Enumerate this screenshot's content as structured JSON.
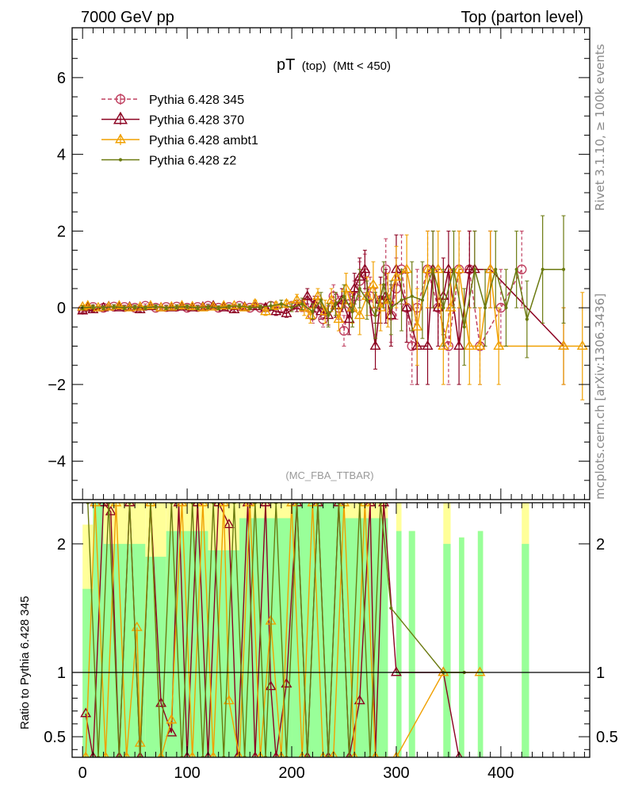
{
  "header": {
    "left": "7000 GeV pp",
    "right": "Top (parton level)"
  },
  "side": {
    "rivet": "Rivet 3.1.10, ≥ 100k events",
    "mcplots": "mcplots.cern.ch [arXiv:1306.3436]"
  },
  "chart_data": [
    {
      "type": "line",
      "title": "pT",
      "title_sub": "(top)",
      "title_cut": "(Mtt < 450)",
      "analysis": "(MC_FBA_TTBAR)",
      "xlim": [
        -10,
        485
      ],
      "ylim": [
        -5,
        7.3
      ],
      "yticks": [
        -4,
        -2,
        0,
        2,
        4,
        6
      ],
      "ytick_labels": [
        "−4",
        "−2",
        "0",
        "2",
        "4",
        "6"
      ],
      "legend_position": "top-left",
      "series": [
        {
          "name": "Pythia 6.428 345",
          "color": "#c04060",
          "style": "dashed",
          "marker": "circle",
          "x": [
            0,
            10,
            20,
            30,
            40,
            50,
            60,
            70,
            80,
            90,
            100,
            110,
            120,
            130,
            140,
            150,
            160,
            170,
            180,
            190,
            200,
            210,
            215,
            220,
            225,
            230,
            240,
            245,
            250,
            255,
            260,
            265,
            270,
            275,
            280,
            285,
            290,
            295,
            300,
            305,
            310,
            315,
            320,
            330,
            340,
            350,
            360,
            370,
            380,
            400,
            420
          ],
          "y": [
            -0.05,
            0.02,
            0.0,
            0.03,
            0.02,
            0.0,
            0.05,
            0.0,
            0.02,
            0.03,
            0.0,
            0.02,
            0.05,
            0.0,
            0.02,
            0.05,
            0.0,
            0.0,
            0.05,
            0.0,
            0.05,
            0.05,
            0.1,
            -0.2,
            0.1,
            -0.3,
            0.3,
            0.0,
            -0.6,
            0.1,
            0.3,
            0.7,
            0.9,
            0.3,
            -0.1,
            0.2,
            1.0,
            -0.2,
            0.5,
            1.0,
            0.0,
            -1.0,
            0.0,
            1.0,
            0.0,
            -1.0,
            1.0,
            1.0,
            -1.0,
            0.0,
            1.0
          ],
          "err": [
            0.05,
            0.05,
            0.05,
            0.05,
            0.05,
            0.05,
            0.05,
            0.05,
            0.05,
            0.05,
            0.05,
            0.05,
            0.05,
            0.05,
            0.05,
            0.05,
            0.05,
            0.05,
            0.1,
            0.1,
            0.1,
            0.15,
            0.2,
            0.2,
            0.2,
            0.2,
            0.3,
            0.3,
            0.4,
            0.3,
            0.4,
            0.5,
            0.5,
            0.5,
            0.6,
            0.6,
            0.8,
            0.7,
            0.8,
            0.9,
            0.9,
            1.0,
            1.0,
            1.0,
            1.0,
            1.0,
            1.0,
            1.0,
            1.0,
            1.0,
            1.0
          ]
        },
        {
          "name": "Pythia 6.428 370",
          "color": "#8b0020",
          "style": "solid",
          "marker": "triangle",
          "x": [
            0,
            5,
            10,
            20,
            25,
            35,
            45,
            55,
            65,
            75,
            85,
            95,
            105,
            115,
            125,
            135,
            145,
            155,
            165,
            175,
            185,
            195,
            205,
            215,
            222,
            228,
            235,
            242,
            248,
            255,
            260,
            265,
            270,
            280,
            285,
            290,
            295,
            300,
            310,
            320,
            330,
            335,
            340,
            345,
            350,
            360,
            370,
            375,
            390,
            460
          ],
          "y": [
            -0.08,
            0.0,
            -0.05,
            0.0,
            0.03,
            0.0,
            0.02,
            -0.05,
            0.03,
            0.0,
            0.0,
            0.02,
            0.0,
            0.02,
            0.05,
            0.0,
            -0.05,
            0.02,
            0.03,
            0.0,
            -0.1,
            -0.15,
            0.05,
            0.3,
            0.1,
            -0.1,
            -0.2,
            0.05,
            0.2,
            -0.3,
            0.5,
            0.8,
            1.0,
            -1.0,
            0.2,
            0.3,
            -0.2,
            1.0,
            0.0,
            -1.0,
            -1.0,
            1.0,
            0.0,
            0.3,
            1.0,
            -1.0,
            1.0,
            1.0,
            1.0,
            -1.0
          ],
          "err": [
            0.05,
            0.05,
            0.05,
            0.05,
            0.05,
            0.05,
            0.05,
            0.05,
            0.05,
            0.05,
            0.05,
            0.05,
            0.05,
            0.05,
            0.05,
            0.05,
            0.05,
            0.05,
            0.05,
            0.1,
            0.1,
            0.1,
            0.15,
            0.2,
            0.2,
            0.2,
            0.25,
            0.3,
            0.3,
            0.4,
            0.4,
            0.5,
            0.5,
            0.6,
            0.6,
            0.7,
            0.8,
            0.9,
            0.9,
            1.0,
            1.0,
            1.0,
            1.0,
            1.0,
            1.0,
            1.0,
            1.0,
            1.0,
            1.0,
            1.0
          ]
        },
        {
          "name": "Pythia 6.428 ambt1",
          "color": "#f0a000",
          "style": "solid",
          "marker": "triangle",
          "x": [
            0,
            5,
            15,
            25,
            35,
            45,
            55,
            65,
            75,
            85,
            95,
            105,
            115,
            125,
            135,
            145,
            155,
            165,
            175,
            185,
            195,
            205,
            212,
            218,
            225,
            232,
            238,
            245,
            252,
            258,
            265,
            272,
            278,
            285,
            292,
            300,
            310,
            320,
            330,
            340,
            345,
            352,
            360,
            370,
            380,
            390,
            398,
            460,
            478
          ],
          "y": [
            0.02,
            0.05,
            0.0,
            0.02,
            0.05,
            0.0,
            0.02,
            0.05,
            0.0,
            0.02,
            0.05,
            0.03,
            0.0,
            0.02,
            0.05,
            0.05,
            0.0,
            0.1,
            -0.1,
            0.05,
            0.1,
            0.2,
            0.0,
            -0.2,
            0.3,
            -0.1,
            0.2,
            -0.3,
            0.5,
            0.0,
            -0.2,
            0.3,
            0.6,
            0.0,
            0.2,
            0.8,
            1.0,
            -0.5,
            1.0,
            1.0,
            -1.0,
            0.0,
            1.0,
            -1.0,
            -1.0,
            1.0,
            -1.0,
            -1.0,
            -1.0
          ],
          "err": [
            0.05,
            0.05,
            0.05,
            0.05,
            0.05,
            0.05,
            0.05,
            0.05,
            0.05,
            0.05,
            0.05,
            0.05,
            0.05,
            0.05,
            0.05,
            0.05,
            0.05,
            0.1,
            0.1,
            0.1,
            0.1,
            0.15,
            0.2,
            0.2,
            0.2,
            0.3,
            0.3,
            0.3,
            0.4,
            0.4,
            0.5,
            0.5,
            0.6,
            0.6,
            0.7,
            0.8,
            0.9,
            1.0,
            1.0,
            1.0,
            1.0,
            1.0,
            1.0,
            1.0,
            1.0,
            1.0,
            1.0,
            1.0,
            1.4
          ]
        },
        {
          "name": "Pythia 6.428 z2",
          "color": "#6b7a10",
          "style": "solid",
          "marker": "dot",
          "x": [
            0,
            10,
            20,
            30,
            40,
            50,
            60,
            70,
            80,
            90,
            100,
            110,
            120,
            130,
            140,
            150,
            160,
            170,
            180,
            190,
            200,
            210,
            220,
            228,
            235,
            242,
            250,
            258,
            265,
            272,
            280,
            288,
            295,
            305,
            315,
            325,
            335,
            345,
            355,
            365,
            375,
            385,
            395,
            405,
            415,
            425,
            440,
            460
          ],
          "y": [
            0.0,
            0.02,
            0.0,
            0.03,
            0.0,
            0.02,
            0.0,
            0.03,
            0.0,
            0.02,
            0.03,
            0.0,
            0.02,
            0.0,
            0.03,
            0.05,
            0.0,
            0.02,
            0.05,
            0.1,
            0.0,
            0.1,
            -0.1,
            0.2,
            -0.2,
            0.1,
            0.3,
            -0.1,
            0.5,
            0.2,
            -0.2,
            0.6,
            0.0,
            0.2,
            0.3,
            0.2,
            1.0,
            0.0,
            1.0,
            -0.5,
            1.0,
            0.0,
            1.0,
            0.0,
            1.0,
            -0.3,
            1.0,
            1.0
          ],
          "err": [
            0.05,
            0.05,
            0.05,
            0.05,
            0.05,
            0.05,
            0.05,
            0.05,
            0.05,
            0.05,
            0.05,
            0.05,
            0.05,
            0.05,
            0.05,
            0.05,
            0.05,
            0.05,
            0.1,
            0.1,
            0.1,
            0.15,
            0.2,
            0.2,
            0.3,
            0.3,
            0.3,
            0.4,
            0.5,
            0.5,
            0.6,
            0.6,
            0.7,
            0.8,
            0.9,
            1.0,
            1.0,
            1.0,
            1.0,
            1.0,
            1.0,
            1.0,
            1.0,
            1.0,
            1.0,
            1.0,
            1.4,
            1.4
          ]
        }
      ]
    },
    {
      "type": "line",
      "ylabel": "Ratio to Pythia 6.428 345",
      "xlim": [
        -10,
        485
      ],
      "ylim": [
        0.34,
        2.32
      ],
      "xticks": [
        0,
        100,
        200,
        300,
        400
      ],
      "xtick_labels": [
        "0",
        "100",
        "200",
        "300",
        "400"
      ],
      "yticks": [
        0.5,
        1,
        2
      ],
      "ytick_labels": [
        "0.5",
        "1",
        "2"
      ],
      "reference_line": 1,
      "band_inner_color": "#99ff99",
      "band_outer_color": "#ffff99",
      "bands": [
        {
          "x0": 0,
          "x1": 10,
          "inner_top": 1.65,
          "outer_top": 2.15
        },
        {
          "x0": 10,
          "x1": 20,
          "inner_top": 2.32,
          "outer_top": 2.32
        },
        {
          "x0": 20,
          "x1": 60,
          "inner_top": 2.0,
          "outer_top": 2.32
        },
        {
          "x0": 60,
          "x1": 80,
          "inner_top": 1.9,
          "outer_top": 2.32
        },
        {
          "x0": 80,
          "x1": 120,
          "inner_top": 2.1,
          "outer_top": 2.32
        },
        {
          "x0": 120,
          "x1": 150,
          "inner_top": 1.95,
          "outer_top": 2.32
        },
        {
          "x0": 150,
          "x1": 200,
          "inner_top": 2.2,
          "outer_top": 2.32
        },
        {
          "x0": 200,
          "x1": 250,
          "inner_top": 2.32,
          "outer_top": 2.32
        },
        {
          "x0": 250,
          "x1": 292,
          "inner_top": 2.2,
          "outer_top": 2.32
        },
        {
          "x0": 300,
          "x1": 305,
          "inner_top": 2.1,
          "outer_top": 2.32
        },
        {
          "x0": 312,
          "x1": 318,
          "inner_top": 2.1,
          "outer_top": 2.1
        },
        {
          "x0": 345,
          "x1": 352,
          "inner_top": 2.0,
          "outer_top": 2.32
        },
        {
          "x0": 360,
          "x1": 365,
          "inner_top": 2.05,
          "outer_top": 2.05
        },
        {
          "x0": 378,
          "x1": 383,
          "inner_top": 2.1,
          "outer_top": 2.1
        },
        {
          "x0": 420,
          "x1": 427,
          "inner_top": 2.0,
          "outer_top": 2.32
        }
      ],
      "series": [
        {
          "name": "Pythia 6.428 370",
          "color": "#8b0020",
          "marker": "triangle",
          "x": [
            3,
            10,
            20,
            27,
            35,
            45,
            55,
            65,
            75,
            85,
            92,
            100,
            110,
            120,
            130,
            140,
            148,
            158,
            165,
            175,
            180,
            185,
            195,
            205,
            215,
            225,
            235,
            245,
            255,
            265,
            275,
            280,
            288,
            300,
            345,
            360
          ],
          "y": [
            0.68,
            0.34,
            2.32,
            2.25,
            0.34,
            2.32,
            0.34,
            2.32,
            0.76,
            0.53,
            2.32,
            0.34,
            2.32,
            0.34,
            2.32,
            2.15,
            0.34,
            2.32,
            0.34,
            2.32,
            0.89,
            0.34,
            0.91,
            2.32,
            0.34,
            2.32,
            0.34,
            2.32,
            0.34,
            0.78,
            2.32,
            0.34,
            2.32,
            1.0,
            1.0,
            0.34
          ]
        },
        {
          "name": "Pythia 6.428 ambt1",
          "color": "#f0a000",
          "marker": "triangle",
          "x": [
            3,
            12,
            22,
            32,
            42,
            52,
            55,
            65,
            75,
            85,
            95,
            105,
            115,
            125,
            135,
            140,
            150,
            160,
            170,
            180,
            190,
            200,
            210,
            220,
            230,
            240,
            250,
            260,
            270,
            280,
            300,
            345,
            380
          ],
          "y": [
            0.34,
            2.32,
            0.34,
            2.32,
            0.34,
            1.35,
            0.45,
            2.32,
            0.34,
            0.63,
            2.32,
            0.34,
            2.32,
            0.34,
            2.32,
            0.78,
            0.34,
            2.32,
            0.34,
            1.4,
            0.34,
            2.32,
            0.34,
            2.32,
            0.34,
            0.35,
            2.32,
            0.34,
            2.32,
            0.34,
            0.34,
            1.0,
            1.0
          ]
        },
        {
          "name": "Pythia 6.428 z2",
          "color": "#6b7a10",
          "marker": "dot",
          "x": [
            5,
            15,
            25,
            35,
            45,
            55,
            65,
            75,
            85,
            95,
            105,
            115,
            125,
            135,
            145,
            155,
            165,
            175,
            185,
            195,
            205,
            215,
            225,
            235,
            245,
            255,
            265,
            275,
            285,
            295,
            345,
            365
          ],
          "y": [
            2.32,
            0.34,
            2.32,
            0.34,
            2.32,
            0.34,
            2.32,
            0.34,
            2.32,
            0.34,
            2.32,
            0.34,
            2.32,
            0.34,
            2.32,
            0.34,
            2.32,
            0.34,
            2.32,
            0.34,
            2.32,
            0.34,
            2.32,
            0.34,
            2.32,
            0.34,
            2.32,
            0.34,
            2.32,
            1.5,
            1.0,
            1.0
          ]
        }
      ]
    }
  ]
}
